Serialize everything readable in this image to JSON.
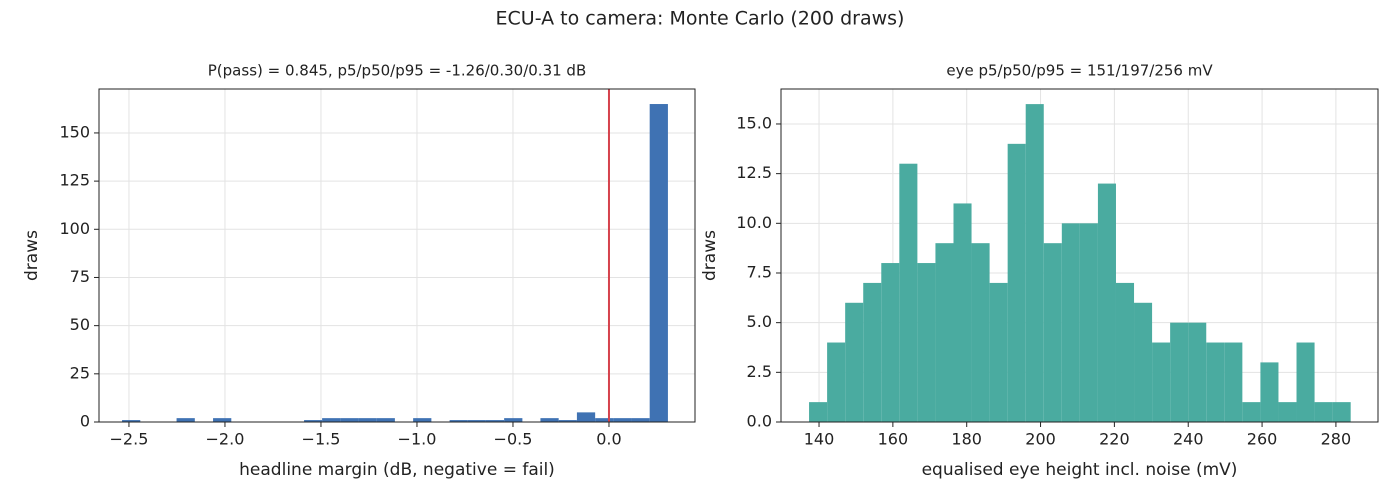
{
  "title": "ECU-A to camera: Monte Carlo (200 draws)",
  "chart_data": [
    {
      "type": "histogram",
      "title": "P(pass) = 0.845, p5/p50/p95 = -1.26/0.30/0.31 dB",
      "xlabel": "headline margin (dB, negative = fail)",
      "ylabel": "draws",
      "bins": [
        -2.536,
        -2.441,
        -2.346,
        -2.252,
        -2.157,
        -2.062,
        -1.967,
        -1.873,
        -1.778,
        -1.683,
        -1.588,
        -1.494,
        -1.399,
        -1.304,
        -1.209,
        -1.115,
        -1.02,
        -0.925,
        -0.83,
        -0.736,
        -0.641,
        -0.546,
        -0.451,
        -0.357,
        -0.262,
        -0.167,
        -0.072,
        0.023,
        0.117,
        0.212,
        0.307
      ],
      "values": [
        1,
        0,
        0,
        2,
        0,
        2,
        0,
        0,
        0,
        0,
        1,
        2,
        2,
        2,
        2,
        0,
        2,
        0,
        1,
        1,
        1,
        2,
        0,
        2,
        1,
        5,
        2,
        2,
        2,
        165
      ],
      "color": "#3f72b3",
      "vline": {
        "x": 0,
        "color": "#d6424c"
      },
      "xlim": [
        -2.656,
        0.448
      ],
      "ylim": [
        0,
        172.8
      ],
      "xticks": [
        {
          "value": -2.5,
          "label": "−2.5"
        },
        {
          "value": -2.0,
          "label": "−2.0"
        },
        {
          "value": -1.5,
          "label": "−1.5"
        },
        {
          "value": -1.0,
          "label": "−1.0"
        },
        {
          "value": -0.5,
          "label": "−0.5"
        },
        {
          "value": 0,
          "label": "0.0"
        }
      ],
      "yticks": [
        0,
        25,
        50,
        75,
        100,
        125,
        150
      ],
      "grid": true
    },
    {
      "type": "histogram",
      "title": "eye p5/p50/p95 = 151/197/256 mV",
      "xlabel": "equalised eye height incl. noise (mV)",
      "ylabel": "draws",
      "bins": [
        137.3,
        142.19,
        147.08,
        151.97,
        156.86,
        161.75,
        166.64,
        171.53,
        176.42,
        181.31,
        186.2,
        191.09,
        195.98,
        200.87,
        205.76,
        210.65,
        215.54,
        220.43,
        225.32,
        230.21,
        235.1,
        239.99,
        244.88,
        249.77,
        254.66,
        259.55,
        264.44,
        269.33,
        274.22,
        279.11,
        284.0
      ],
      "values": [
        1,
        4,
        6,
        7,
        8,
        13,
        8,
        9,
        11,
        9,
        7,
        14,
        16,
        9,
        10,
        10,
        12,
        7,
        6,
        4,
        5,
        5,
        4,
        4,
        1,
        3,
        1,
        4,
        1,
        1
      ],
      "color": "#4aaba0",
      "xlim": [
        129.7,
        291.4
      ],
      "ylim": [
        0,
        16.76
      ],
      "xticks": [
        140,
        160,
        180,
        200,
        220,
        240,
        260,
        280
      ],
      "yticks": [
        {
          "value": 0,
          "label": "0.0"
        },
        2.5,
        {
          "value": 5,
          "label": "5.0"
        },
        7.5,
        {
          "value": 10,
          "label": "10.0"
        },
        12.5,
        {
          "value": 15,
          "label": "15.0"
        }
      ],
      "grid": true
    }
  ]
}
